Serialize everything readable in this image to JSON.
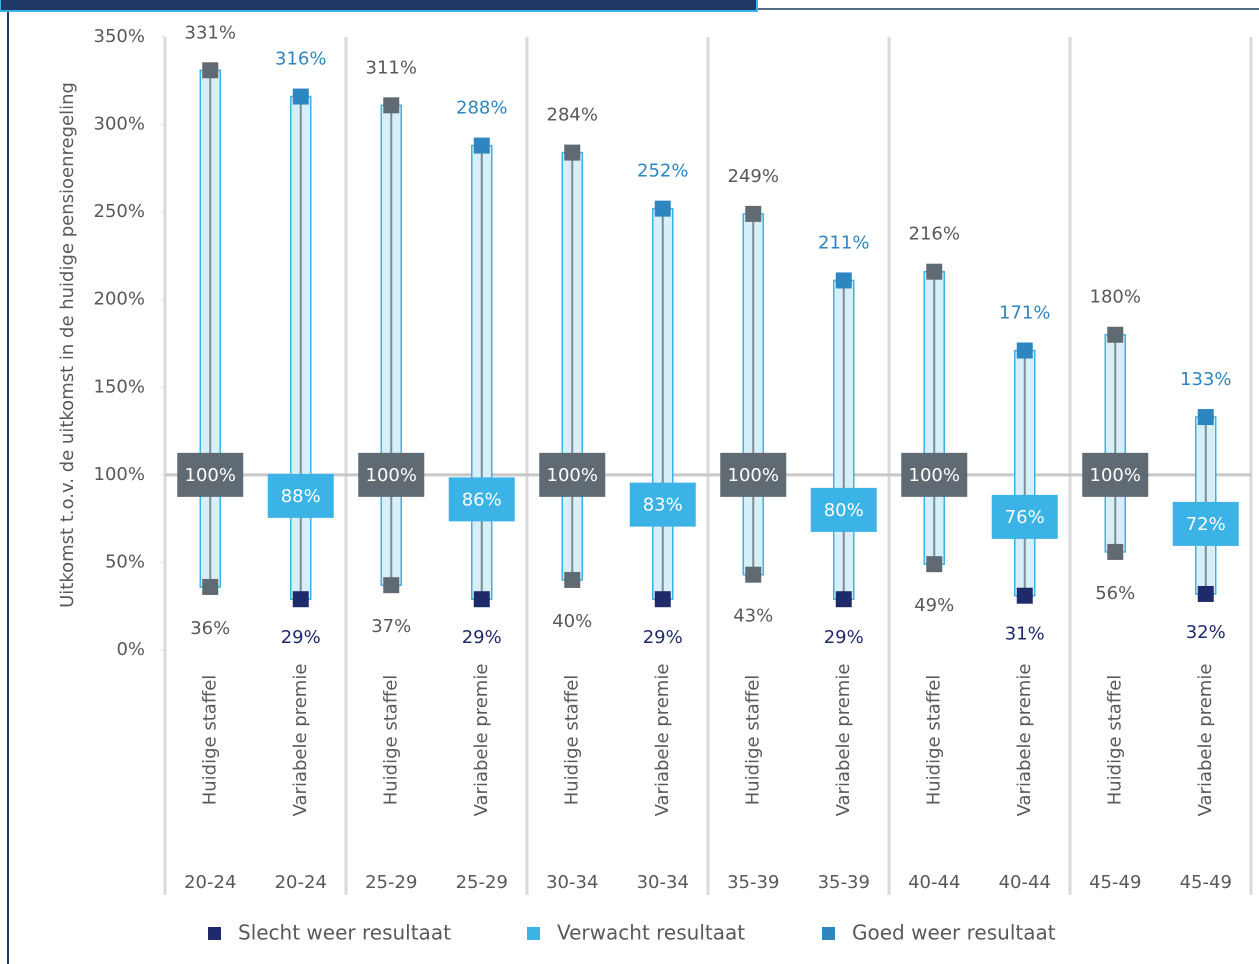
{
  "chart_data": {
    "type": "range",
    "y_label": "Uitkomst t.o.v. de uitkomst in de huidige pensioenregeling",
    "categories": [
      "Huidige staffel",
      "Variabele premie",
      "Huidige staffel",
      "Variabele premie",
      "Huidige staffel",
      "Variabele premie",
      "Huidige staffel",
      "Variabele premie",
      "Huidige staffel",
      "Variabele premie",
      "Huidige staffel",
      "Variabele premie"
    ],
    "groups": [
      "20-24",
      "20-24",
      "25-29",
      "25-29",
      "30-34",
      "30-34",
      "35-39",
      "35-39",
      "40-44",
      "40-44",
      "45-49",
      "45-49"
    ],
    "series": [
      {
        "name": "Slecht weer resultaat",
        "color": "#1f2a6b",
        "role": "low",
        "values": [
          36,
          29,
          37,
          29,
          40,
          29,
          43,
          29,
          49,
          31,
          56,
          32
        ],
        "value_labels": [
          "36%",
          "29%",
          "37%",
          "29%",
          "40%",
          "29%",
          "43%",
          "29%",
          "49%",
          "31%",
          "56%",
          "32%"
        ]
      },
      {
        "name": "Verwacht resultaat",
        "color": "#3bb3e6",
        "role": "mid",
        "values": [
          100,
          88,
          100,
          86,
          100,
          83,
          100,
          80,
          100,
          76,
          100,
          72
        ],
        "value_labels": [
          "100%",
          "88%",
          "100%",
          "86%",
          "100%",
          "83%",
          "100%",
          "80%",
          "100%",
          "76%",
          "100%",
          "72%"
        ]
      },
      {
        "name": "Goed weer resultaat",
        "color": "#2e86c1",
        "role": "high",
        "values": [
          331,
          316,
          311,
          288,
          284,
          252,
          249,
          211,
          216,
          171,
          180,
          133
        ],
        "value_labels": [
          "331%",
          "316%",
          "311%",
          "288%",
          "284%",
          "252%",
          "249%",
          "211%",
          "216%",
          "171%",
          "180%",
          "133%"
        ]
      }
    ],
    "baseline_color": "#5f6a72",
    "baseline_categories": [
      0,
      2,
      4,
      6,
      8,
      10
    ],
    "reference_line": 100,
    "ylim": [
      0,
      350
    ],
    "yticks": [
      {
        "value": 0,
        "label": "0%"
      },
      {
        "value": 50,
        "label": "50%"
      },
      {
        "value": 100,
        "label": "100%"
      },
      {
        "value": 150,
        "label": "150%"
      },
      {
        "value": 200,
        "label": "200%"
      },
      {
        "value": 250,
        "label": "250%"
      },
      {
        "value": 300,
        "label": "300%"
      },
      {
        "value": 350,
        "label": "350%"
      }
    ],
    "legend": "bottom"
  }
}
